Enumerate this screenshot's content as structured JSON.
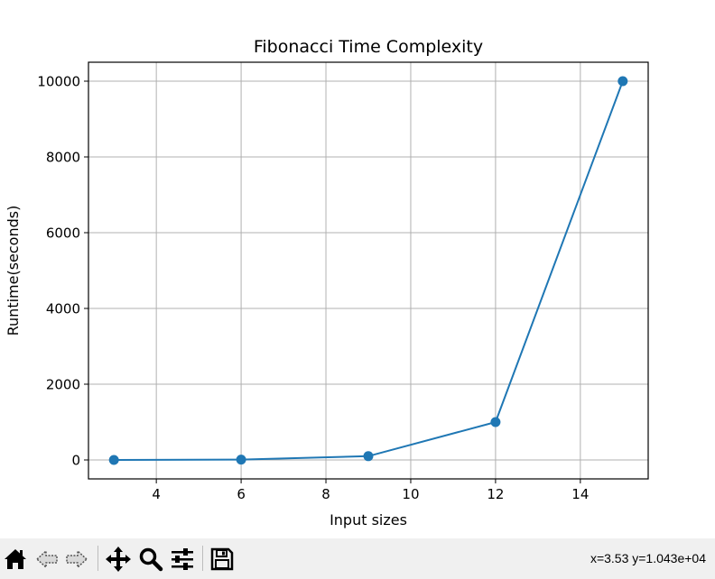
{
  "chart_data": {
    "type": "line",
    "title": "Fibonacci Time Complexity",
    "xlabel": "Input sizes",
    "ylabel": "Runtime(seconds)",
    "x": [
      3,
      6,
      9,
      12,
      15
    ],
    "series": [
      {
        "values": [
          1,
          10,
          100,
          1000,
          10000
        ],
        "color": "#1f77b4",
        "marker": "circle"
      }
    ],
    "xlim": [
      2.4,
      15.6
    ],
    "ylim": [
      -500,
      10500
    ],
    "xticks": [
      4,
      6,
      8,
      10,
      12,
      14
    ],
    "yticks": [
      0,
      2000,
      4000,
      6000,
      8000,
      10000
    ],
    "grid": true
  },
  "toolbar": {
    "buttons": [
      {
        "name": "home-button",
        "icon": "home-icon"
      },
      {
        "name": "back-button",
        "icon": "arrow-left-icon"
      },
      {
        "name": "forward-button",
        "icon": "arrow-right-icon"
      },
      {
        "name": "pan-button",
        "icon": "move-icon"
      },
      {
        "name": "zoom-button",
        "icon": "magnifier-icon"
      },
      {
        "name": "configure-subplots-button",
        "icon": "sliders-icon"
      },
      {
        "name": "save-button",
        "icon": "floppy-disk-icon"
      }
    ],
    "coordinates": "x=3.53 y=1.043e+04"
  }
}
